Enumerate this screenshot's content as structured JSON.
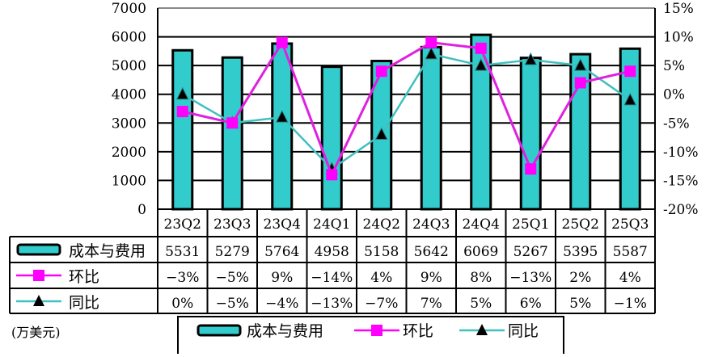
{
  "chart_data": {
    "type": "bar+line",
    "unit_note": "(万美元)",
    "categories": [
      "23Q2",
      "23Q3",
      "23Q4",
      "24Q1",
      "24Q2",
      "24Q3",
      "24Q4",
      "25Q1",
      "25Q2",
      "25Q3"
    ],
    "left_axis": {
      "ylim": [
        0,
        7000
      ],
      "ticks": [
        "0",
        "1000",
        "2000",
        "3000",
        "4000",
        "5000",
        "6000",
        "7000"
      ]
    },
    "right_axis": {
      "ylim": [
        -20,
        15
      ],
      "ticks": [
        "-20%",
        "-15%",
        "-10%",
        "-5%",
        "0%",
        "5%",
        "10%",
        "15%"
      ]
    },
    "grid": true,
    "series": [
      {
        "name": "成本与费用",
        "type": "bar",
        "axis": "left",
        "color": "#33CCCC",
        "values": [
          5531,
          5279,
          5764,
          4958,
          5158,
          5642,
          6069,
          5267,
          5395,
          5587
        ],
        "labels": [
          "5531",
          "5279",
          "5764",
          "4958",
          "5158",
          "5642",
          "6069",
          "5267",
          "5395",
          "5587"
        ]
      },
      {
        "name": "环比",
        "type": "line",
        "axis": "right",
        "color": "#FF00FF",
        "marker": "square",
        "values": [
          -3,
          -5,
          9,
          -14,
          4,
          9,
          8,
          -13,
          2,
          4
        ],
        "labels": [
          "−3%",
          "−5%",
          "9%",
          "−14%",
          "4%",
          "9%",
          "8%",
          "−13%",
          "2%",
          "4%"
        ]
      },
      {
        "name": "同比",
        "type": "line",
        "axis": "right",
        "color": "#40C0C0",
        "marker": "triangle",
        "values": [
          0,
          -5,
          -4,
          -13,
          -7,
          7,
          5,
          6,
          5,
          -1
        ],
        "labels": [
          "0%",
          "−5%",
          "−4%",
          "−13%",
          "−7%",
          "7%",
          "5%",
          "6%",
          "5%",
          "−1%"
        ]
      }
    ],
    "legend_position": "bottom"
  }
}
